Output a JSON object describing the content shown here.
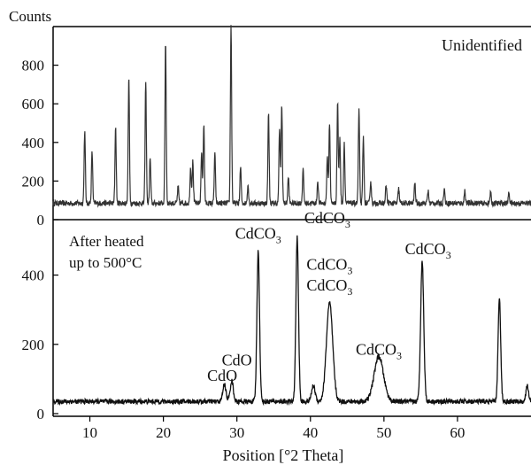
{
  "chart_data": [
    {
      "type": "line",
      "panel": "top",
      "ylabel": "Counts",
      "annotation": "Unidentified",
      "ylim": [
        0,
        1000
      ],
      "yticks": [
        0,
        200,
        400,
        600,
        800
      ],
      "xlim": [
        5,
        70
      ],
      "baseline": 85,
      "peaks": [
        {
          "x": 9.3,
          "y": 460
        },
        {
          "x": 10.3,
          "y": 350
        },
        {
          "x": 13.5,
          "y": 480
        },
        {
          "x": 15.3,
          "y": 730
        },
        {
          "x": 17.6,
          "y": 715
        },
        {
          "x": 18.2,
          "y": 320
        },
        {
          "x": 20.3,
          "y": 920
        },
        {
          "x": 22.0,
          "y": 170
        },
        {
          "x": 23.7,
          "y": 270
        },
        {
          "x": 24.0,
          "y": 300
        },
        {
          "x": 25.2,
          "y": 350
        },
        {
          "x": 25.5,
          "y": 490
        },
        {
          "x": 27.0,
          "y": 340
        },
        {
          "x": 29.2,
          "y": 1000
        },
        {
          "x": 30.5,
          "y": 270
        },
        {
          "x": 31.5,
          "y": 180
        },
        {
          "x": 34.3,
          "y": 550
        },
        {
          "x": 35.8,
          "y": 470
        },
        {
          "x": 36.1,
          "y": 590
        },
        {
          "x": 37.0,
          "y": 220
        },
        {
          "x": 39.0,
          "y": 260
        },
        {
          "x": 41.0,
          "y": 200
        },
        {
          "x": 42.3,
          "y": 320
        },
        {
          "x": 42.6,
          "y": 500
        },
        {
          "x": 43.7,
          "y": 610
        },
        {
          "x": 44.0,
          "y": 420
        },
        {
          "x": 44.6,
          "y": 400
        },
        {
          "x": 46.6,
          "y": 570
        },
        {
          "x": 47.2,
          "y": 430
        },
        {
          "x": 48.2,
          "y": 200
        },
        {
          "x": 50.3,
          "y": 180
        },
        {
          "x": 52.0,
          "y": 160
        },
        {
          "x": 54.2,
          "y": 190
        },
        {
          "x": 56.0,
          "y": 150
        },
        {
          "x": 58.2,
          "y": 160
        },
        {
          "x": 61.0,
          "y": 150
        },
        {
          "x": 64.5,
          "y": 140
        },
        {
          "x": 67.0,
          "y": 140
        }
      ]
    },
    {
      "type": "line",
      "panel": "bottom",
      "annotation_lines": [
        "After heated",
        "up to 500°C"
      ],
      "ylim": [
        0,
        560
      ],
      "yticks": [
        0,
        200,
        400
      ],
      "xlim": [
        5,
        70
      ],
      "xticks": [
        10,
        20,
        30,
        40,
        50,
        60
      ],
      "xlabel": "Position [°2 Theta]",
      "baseline": 35,
      "peaks": [
        {
          "x": 28.3,
          "y": 85,
          "w": 0.3
        },
        {
          "x": 29.3,
          "y": 95,
          "w": 0.3
        },
        {
          "x": 32.9,
          "y": 470,
          "w": 0.25
        },
        {
          "x": 38.2,
          "y": 510,
          "w": 0.25
        },
        {
          "x": 40.4,
          "y": 80,
          "w": 0.35
        },
        {
          "x": 42.6,
          "y": 320,
          "w": 0.6
        },
        {
          "x": 49.3,
          "y": 165,
          "w": 0.9
        },
        {
          "x": 55.2,
          "y": 440,
          "w": 0.3
        },
        {
          "x": 65.7,
          "y": 330,
          "w": 0.25
        },
        {
          "x": 69.5,
          "y": 80,
          "w": 0.25
        }
      ],
      "peak_labels": [
        {
          "x": 28.0,
          "y": 95,
          "label": "CdO"
        },
        {
          "x": 30.0,
          "y": 140,
          "label": "CdO"
        },
        {
          "x": 32.9,
          "y": 505,
          "label": "CdCO3"
        },
        {
          "x": 42.3,
          "y": 550,
          "label": "CdCO3"
        },
        {
          "x": 42.6,
          "y": 415,
          "label": "CdCO3"
        },
        {
          "x": 42.6,
          "y": 355,
          "label": "CdCO3"
        },
        {
          "x": 49.3,
          "y": 170,
          "label": "CdCO3"
        },
        {
          "x": 56.0,
          "y": 460,
          "label": "CdCO3"
        }
      ]
    }
  ]
}
